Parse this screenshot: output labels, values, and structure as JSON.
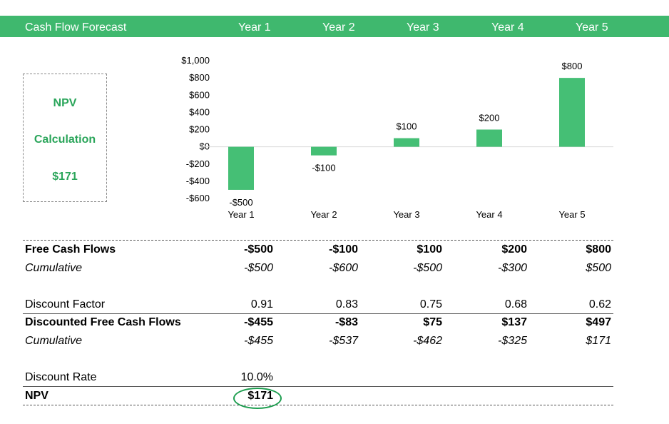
{
  "header": {
    "title": "Cash Flow Forecast",
    "years": [
      "Year 1",
      "Year 2",
      "Year 3",
      "Year 4",
      "Year 5"
    ]
  },
  "npv_box": {
    "line1": "NPV",
    "line2": "Calculation",
    "value": "$171"
  },
  "chart_data": {
    "type": "bar",
    "categories": [
      "Year 1",
      "Year 2",
      "Year 3",
      "Year 4",
      "Year 5"
    ],
    "values": [
      -500,
      -100,
      100,
      200,
      800
    ],
    "data_labels": [
      "-$500",
      "-$100",
      "$100",
      "$200",
      "$800"
    ],
    "ylim": [
      -600,
      1000
    ],
    "yticks": [
      1000,
      800,
      600,
      400,
      200,
      0,
      -200,
      -400,
      -600
    ],
    "ytick_labels": [
      "$1,000",
      "$800",
      "$600",
      "$400",
      "$200",
      "$0",
      "-$200",
      "-$400",
      "-$600"
    ],
    "color": "#45bf75",
    "grid": false
  },
  "table": {
    "free_cash_flows": {
      "label": "Free Cash Flows",
      "values": [
        "-$500",
        "-$100",
        "$100",
        "$200",
        "$800"
      ]
    },
    "cumulative_fcf": {
      "label": "Cumulative",
      "values": [
        "-$500",
        "-$600",
        "-$500",
        "-$300",
        "$500"
      ]
    },
    "discount_factor": {
      "label": "Discount Factor",
      "values": [
        "0.91",
        "0.83",
        "0.75",
        "0.68",
        "0.62"
      ]
    },
    "discounted_fcf": {
      "label": "Discounted Free Cash Flows",
      "values": [
        "-$455",
        "-$83",
        "$75",
        "$137",
        "$497"
      ]
    },
    "cumulative_dfcf": {
      "label": "Cumulative",
      "values": [
        "-$455",
        "-$537",
        "-$462",
        "-$325",
        "$171"
      ]
    },
    "discount_rate": {
      "label": "Discount Rate",
      "value": "10.0%"
    },
    "npv": {
      "label": "NPV",
      "value": "$171"
    }
  },
  "colors": {
    "header_bg": "#3fb86e",
    "accent_text": "#2aa55a",
    "bar": "#45bf75",
    "highlight_ring": "#1e9e50"
  }
}
